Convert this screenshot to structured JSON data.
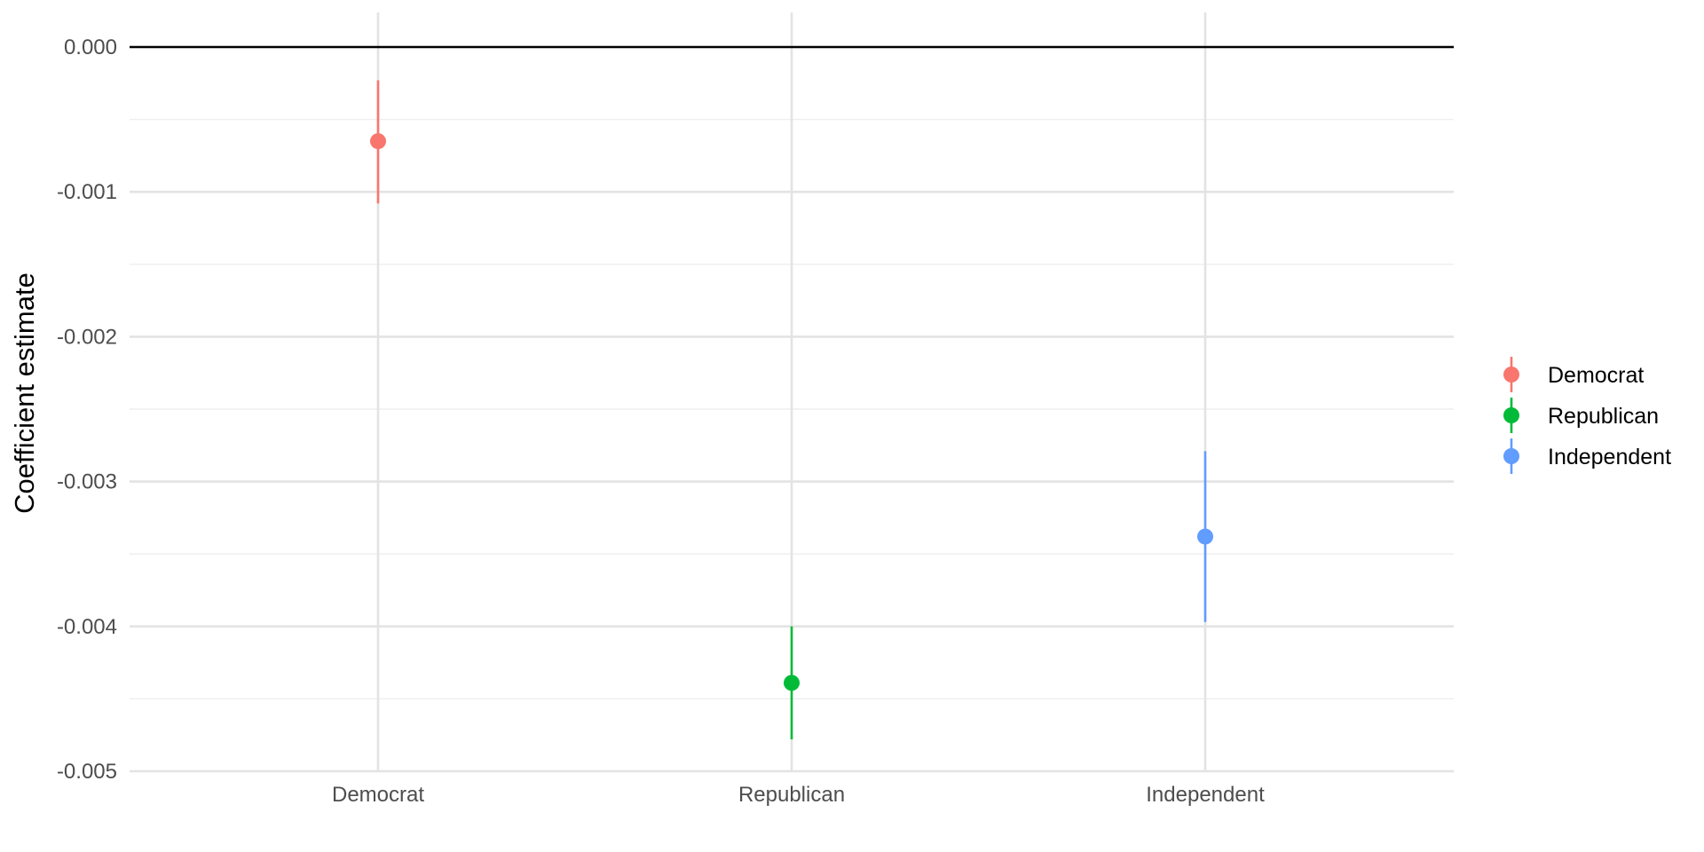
{
  "chart_data": {
    "type": "scatter",
    "title": "",
    "xlabel": "",
    "ylabel": "Coefficient estimate",
    "categories": [
      "Democrat",
      "Republican",
      "Independent"
    ],
    "ylim": [
      -0.005,
      0.0
    ],
    "y_ticks": [
      0.0,
      -0.001,
      -0.002,
      -0.003,
      -0.004,
      -0.005
    ],
    "y_tick_labels": [
      "0.000",
      "-0.001",
      "-0.002",
      "-0.003",
      "-0.004",
      "-0.005"
    ],
    "reference_line": 0.0,
    "grid": true,
    "series": [
      {
        "name": "Democrat",
        "category": "Democrat",
        "estimate": -0.00065,
        "ci_low": -0.00108,
        "ci_high": -0.00023,
        "color": "#F8766D"
      },
      {
        "name": "Republican",
        "category": "Republican",
        "estimate": -0.00439,
        "ci_low": -0.00478,
        "ci_high": -0.004,
        "color": "#00BA38"
      },
      {
        "name": "Independent",
        "category": "Independent",
        "estimate": -0.00338,
        "ci_low": -0.00397,
        "ci_high": -0.00279,
        "color": "#619CFF"
      }
    ],
    "legend": {
      "placement": "right",
      "entries": [
        "Democrat",
        "Republican",
        "Independent"
      ]
    }
  }
}
